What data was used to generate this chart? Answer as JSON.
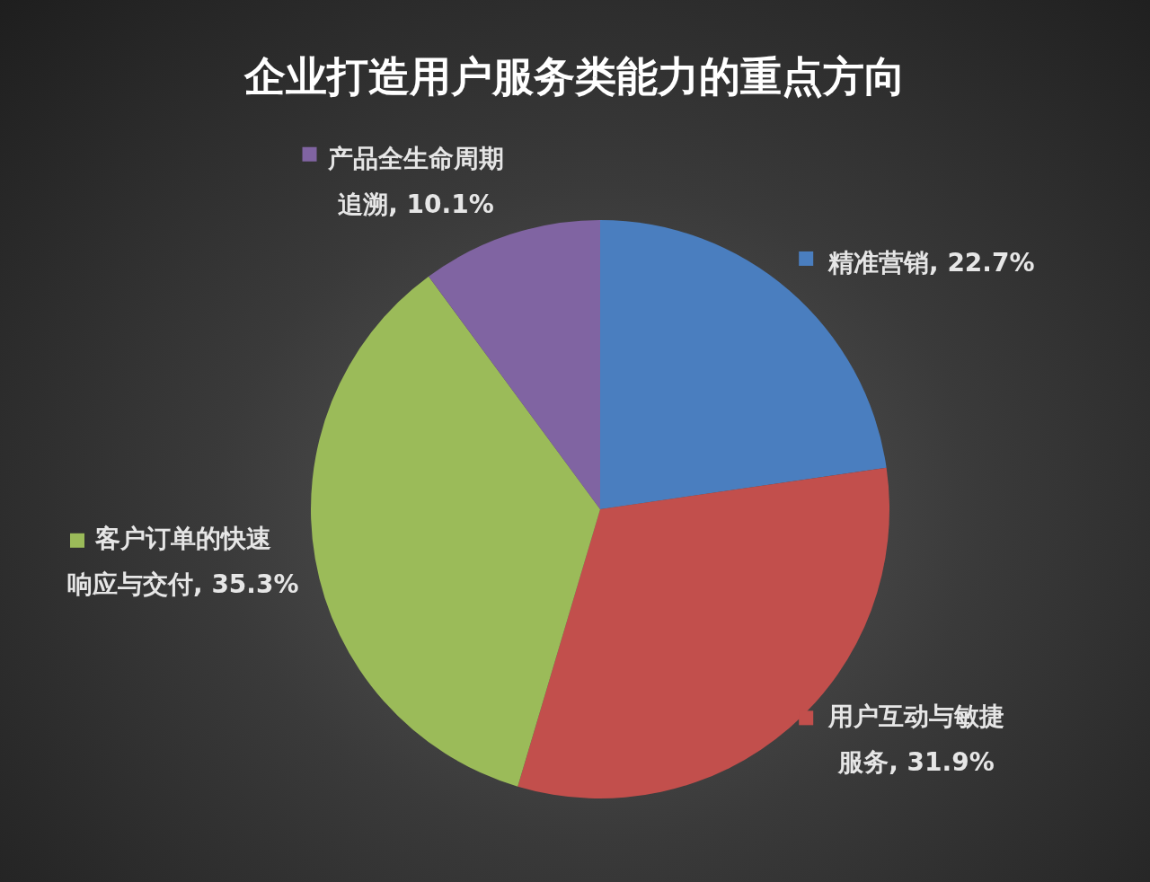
{
  "chart_data": {
    "type": "pie",
    "title": "企业打造用户服务类能力的重点方向",
    "categories": [
      "精准营销",
      "用户互动与敏捷服务",
      "客户订单的快速响应与交付",
      "产品全生命周期追溯"
    ],
    "values": [
      22.7,
      31.9,
      35.3,
      10.1
    ],
    "value_labels": [
      "22.7%",
      "31.9%",
      "35.3%",
      "10.1%"
    ],
    "colors": [
      "#4a7ebf",
      "#c24f4c",
      "#9bbb59",
      "#8064a2"
    ],
    "legend": "top left"
  }
}
